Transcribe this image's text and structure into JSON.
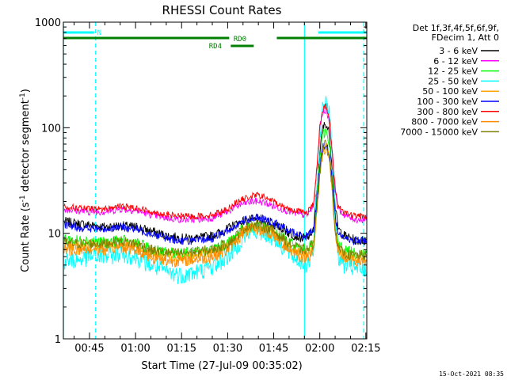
{
  "chart_data": {
    "type": "line",
    "title": "RHESSI Count Rates",
    "xlabel": "Start Time (27-Jul-09 00:35:02)",
    "ylabel_parts": [
      "Count Rate (s",
      "-1",
      " detector segment",
      "-1",
      ")"
    ],
    "y_scale": "log",
    "ylim": [
      1,
      1000
    ],
    "y_ticks": [
      {
        "value": 1,
        "label": "1"
      },
      {
        "value": 10,
        "label": "10"
      },
      {
        "value": 100,
        "label": "100"
      },
      {
        "value": 1000,
        "label": "1000"
      }
    ],
    "xlim_minutes": [
      36.5,
      135.3
    ],
    "x_ticks": [
      {
        "minute": 45,
        "label": "00:45"
      },
      {
        "minute": 60,
        "label": "01:00"
      },
      {
        "minute": 75,
        "label": "01:15"
      },
      {
        "minute": 90,
        "label": "01:30"
      },
      {
        "minute": 105,
        "label": "01:45"
      },
      {
        "minute": 120,
        "label": "02:00"
      },
      {
        "minute": 135,
        "label": "02:15"
      }
    ],
    "legend_header": [
      "Det 1f,3f,4f,5f,6f,9f,",
      "FDecim 1, Att 0"
    ],
    "legend_position": "right",
    "series": [
      {
        "name": "3 - 6 keV",
        "color": "#000000",
        "x": [
          36.5,
          40,
          45,
          50,
          55,
          60,
          65,
          70,
          75,
          80,
          85,
          90,
          92,
          95,
          98,
          100,
          102,
          105,
          108,
          110,
          112,
          114,
          116,
          118,
          119,
          120,
          121,
          122,
          123,
          124,
          125,
          126,
          128,
          130,
          132,
          135
        ],
        "y": [
          13,
          12.5,
          12,
          11.5,
          11.8,
          11.5,
          10.5,
          9.5,
          9,
          9,
          9.5,
          11,
          12,
          13,
          13.5,
          13,
          12.5,
          12,
          11,
          10,
          9.5,
          9,
          9,
          11,
          25,
          60,
          100,
          110,
          90,
          45,
          18,
          11,
          9.5,
          9,
          8.5,
          8.5
        ]
      },
      {
        "name": "6 - 12 keV",
        "color": "#ff00ff",
        "x": [
          36.5,
          40,
          45,
          50,
          55,
          60,
          65,
          70,
          75,
          80,
          85,
          90,
          92,
          95,
          98,
          100,
          102,
          105,
          108,
          110,
          112,
          114,
          116,
          118,
          119,
          120,
          121,
          122,
          123,
          124,
          125,
          126,
          128,
          130,
          132,
          135
        ],
        "y": [
          17,
          16.5,
          16,
          16,
          17,
          16.5,
          15,
          14,
          13.5,
          13.5,
          14,
          16,
          17.5,
          19,
          20,
          20,
          19.5,
          18,
          17,
          16,
          15.5,
          15,
          15,
          18,
          40,
          100,
          140,
          150,
          120,
          60,
          25,
          17,
          15,
          14,
          13.5,
          13.5
        ]
      },
      {
        "name": "12 - 25 keV",
        "color": "#00ff00",
        "x": [
          36.5,
          40,
          45,
          50,
          55,
          60,
          65,
          70,
          75,
          80,
          85,
          90,
          92,
          95,
          98,
          100,
          102,
          105,
          108,
          110,
          112,
          114,
          116,
          118,
          119,
          120,
          121,
          122,
          123,
          124,
          125,
          126,
          128,
          130,
          132,
          135
        ],
        "y": [
          9,
          8.5,
          8.5,
          8,
          8.5,
          8,
          7,
          6.5,
          6.5,
          6.5,
          7,
          8,
          9,
          11,
          12,
          12,
          11,
          10,
          9,
          8,
          7.5,
          7,
          7,
          8,
          20,
          50,
          85,
          95,
          75,
          35,
          13,
          8,
          7,
          6.5,
          6.5,
          6.5
        ]
      },
      {
        "name": "25 - 50 keV",
        "color": "#00ffff",
        "x": [
          36.5,
          40,
          45,
          50,
          55,
          60,
          65,
          70,
          75,
          80,
          85,
          90,
          92,
          95,
          98,
          100,
          102,
          105,
          108,
          110,
          112,
          114,
          116,
          118,
          119,
          120,
          121,
          122,
          123,
          124,
          125,
          126,
          128,
          130,
          132,
          135
        ],
        "y": [
          5.5,
          5.5,
          6,
          6,
          6.5,
          6,
          5,
          4.3,
          4,
          4.3,
          4.8,
          6,
          7,
          9,
          10.5,
          10.5,
          10,
          9,
          7.5,
          6.5,
          5.8,
          5.2,
          5,
          7,
          25,
          80,
          160,
          190,
          150,
          60,
          15,
          6,
          5,
          4.8,
          4.5,
          4.5
        ]
      },
      {
        "name": "50 - 100 keV",
        "color": "#ffa500",
        "x": [
          36.5,
          40,
          45,
          50,
          55,
          60,
          65,
          70,
          75,
          80,
          85,
          90,
          92,
          95,
          98,
          100,
          102,
          105,
          108,
          110,
          112,
          114,
          116,
          118,
          119,
          120,
          121,
          122,
          123,
          124,
          125,
          126,
          128,
          130,
          132,
          135
        ],
        "y": [
          7.5,
          7.5,
          7.5,
          7.5,
          8,
          7.5,
          6.5,
          6,
          6,
          6.2,
          6.5,
          7.5,
          8.5,
          10.5,
          11.5,
          11.5,
          11,
          10,
          8.5,
          7.5,
          7,
          6.5,
          6.5,
          7.5,
          16,
          38,
          62,
          68,
          55,
          28,
          11,
          7,
          6,
          5.8,
          5.8,
          5.8
        ]
      },
      {
        "name": "100 - 300 keV",
        "color": "#0000ff",
        "x": [
          36.5,
          40,
          45,
          50,
          55,
          60,
          65,
          70,
          75,
          80,
          85,
          90,
          92,
          95,
          98,
          100,
          102,
          105,
          108,
          110,
          112,
          114,
          116,
          118,
          119,
          120,
          121,
          122,
          123,
          124,
          125,
          126,
          128,
          130,
          132,
          135
        ],
        "y": [
          12,
          11.5,
          11,
          11,
          11.5,
          11,
          10,
          9,
          8.5,
          8.5,
          9,
          10.5,
          11.5,
          13,
          14,
          14,
          13.5,
          12.5,
          11.5,
          10.5,
          10,
          9.5,
          9.5,
          11,
          20,
          45,
          65,
          70,
          58,
          32,
          15,
          10,
          9,
          8.5,
          8.5,
          8.5
        ]
      },
      {
        "name": "300 - 800 keV",
        "color": "#ff0000",
        "x": [
          36.5,
          40,
          45,
          50,
          55,
          60,
          65,
          70,
          75,
          80,
          85,
          90,
          92,
          95,
          98,
          100,
          102,
          105,
          108,
          110,
          112,
          114,
          116,
          118,
          119,
          120,
          121,
          122,
          123,
          124,
          125,
          126,
          128,
          130,
          132,
          135
        ],
        "y": [
          18,
          17.5,
          17,
          17,
          18,
          17.5,
          16,
          15,
          14.5,
          14.5,
          15,
          17,
          19,
          21,
          22.5,
          23,
          22,
          20,
          18,
          17,
          16.5,
          16,
          16,
          19,
          40,
          105,
          150,
          160,
          125,
          62,
          27,
          18,
          16,
          15,
          14.5,
          14.5
        ]
      },
      {
        "name": "800 - 7000 keV",
        "color": "#ff8c00",
        "x": [
          36.5,
          40,
          45,
          50,
          55,
          60,
          65,
          70,
          75,
          80,
          85,
          90,
          92,
          95,
          98,
          100,
          102,
          105,
          108,
          110,
          112,
          114,
          116,
          118,
          119,
          120,
          121,
          122,
          123,
          124,
          125,
          126,
          128,
          130,
          132,
          135
        ],
        "y": [
          7,
          7,
          7,
          7,
          7.5,
          7,
          6,
          5.5,
          5.5,
          5.7,
          6,
          7,
          8,
          10,
          11,
          11,
          10.5,
          9.5,
          8,
          7,
          6.5,
          6,
          6,
          7,
          15,
          36,
          60,
          66,
          52,
          26,
          10,
          6.5,
          5.8,
          5.5,
          5.5,
          5.5
        ]
      },
      {
        "name": "7000 - 15000 keV",
        "color": "#808000",
        "x": [
          36.5,
          40,
          45,
          50,
          55,
          60,
          65,
          70,
          75,
          80,
          85,
          90,
          92,
          95,
          98,
          100,
          102,
          105,
          108,
          110,
          112,
          114,
          116,
          118,
          119,
          120,
          121,
          122,
          123,
          124,
          125,
          126,
          128,
          130,
          132,
          135
        ],
        "y": [
          8,
          8,
          8,
          8,
          8.5,
          8,
          7,
          6.5,
          6.5,
          6.7,
          7,
          8,
          9,
          11,
          12,
          12,
          11.5,
          10.5,
          9,
          8,
          7.5,
          7,
          7,
          8,
          16,
          38,
          63,
          70,
          55,
          28,
          11,
          7,
          6.5,
          6.2,
          6.2,
          6.2
        ]
      }
    ],
    "attenuator_bars": [
      {
        "label": "N",
        "color": "#00ffff",
        "segments": [
          [
            36.5,
            46.5
          ],
          [
            119.5,
            135.3
          ]
        ]
      },
      {
        "label": "RD0",
        "color": "#008000",
        "segments": [
          [
            36.5,
            90.5
          ],
          [
            106,
            135.3
          ]
        ]
      },
      {
        "label": "RD4",
        "color": "#008000",
        "segments": [
          [
            91,
            98.5
          ]
        ]
      }
    ],
    "vertical_lines": [
      {
        "minute": 36.5,
        "style": "solid",
        "color": "#00ffff"
      },
      {
        "minute": 47.0,
        "style": "dashed",
        "color": "#00ffff"
      },
      {
        "minute": 115.0,
        "style": "solid",
        "color": "#00ffff"
      },
      {
        "minute": 134.3,
        "style": "dashed",
        "color": "#00ffff"
      }
    ],
    "timestamp": "15-Oct-2021 08:35"
  }
}
